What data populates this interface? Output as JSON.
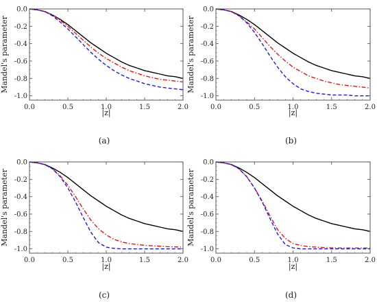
{
  "chart_data": [
    {
      "type": "line",
      "panel": "a",
      "caption": "(a)",
      "xlabel": "|z|",
      "ylabel": "Mandel's parameter",
      "xlim": [
        0,
        2
      ],
      "ylim": [
        -1.05,
        0
      ],
      "xticks": [
        "0.0",
        "0.5",
        "1.0",
        "1.5",
        "2.0"
      ],
      "yticks": [
        "0.0",
        "-0.2",
        "-0.4",
        "-0.6",
        "-0.8",
        "-1.0"
      ],
      "grid": false,
      "series": [
        {
          "color": "#000000",
          "style": "solid",
          "x": [
            0,
            0.1,
            0.2,
            0.3,
            0.4,
            0.5,
            0.6,
            0.7,
            0.8,
            0.9,
            1.0,
            1.1,
            1.2,
            1.3,
            1.4,
            1.5,
            1.6,
            1.7,
            1.8,
            1.9,
            2.0
          ],
          "y": [
            0,
            -0.01,
            -0.03,
            -0.07,
            -0.12,
            -0.18,
            -0.25,
            -0.32,
            -0.39,
            -0.45,
            -0.51,
            -0.56,
            -0.61,
            -0.65,
            -0.68,
            -0.71,
            -0.73,
            -0.75,
            -0.77,
            -0.78,
            -0.8
          ]
        },
        {
          "color": "#e8140f",
          "style": "dashdot",
          "x": [
            0,
            0.1,
            0.2,
            0.3,
            0.4,
            0.5,
            0.6,
            0.7,
            0.8,
            0.9,
            1.0,
            1.1,
            1.2,
            1.3,
            1.4,
            1.5,
            1.6,
            1.7,
            1.8,
            1.9,
            2.0
          ],
          "y": [
            0,
            -0.01,
            -0.03,
            -0.07,
            -0.13,
            -0.2,
            -0.28,
            -0.36,
            -0.44,
            -0.51,
            -0.57,
            -0.62,
            -0.67,
            -0.71,
            -0.74,
            -0.77,
            -0.79,
            -0.81,
            -0.82,
            -0.83,
            -0.84
          ]
        },
        {
          "color": "#1a1ae6",
          "style": "dashed",
          "x": [
            0,
            0.1,
            0.2,
            0.3,
            0.4,
            0.5,
            0.6,
            0.7,
            0.8,
            0.9,
            1.0,
            1.1,
            1.2,
            1.3,
            1.4,
            1.5,
            1.6,
            1.7,
            1.8,
            1.9,
            2.0
          ],
          "y": [
            0,
            -0.01,
            -0.03,
            -0.08,
            -0.15,
            -0.23,
            -0.32,
            -0.41,
            -0.5,
            -0.58,
            -0.65,
            -0.71,
            -0.76,
            -0.8,
            -0.83,
            -0.86,
            -0.88,
            -0.9,
            -0.91,
            -0.92,
            -0.93
          ]
        }
      ]
    },
    {
      "type": "line",
      "panel": "b",
      "caption": "(b)",
      "xlabel": "|z|",
      "ylabel": "Mandel's parameter",
      "xlim": [
        0,
        2
      ],
      "ylim": [
        -1.05,
        0
      ],
      "xticks": [
        "0.0",
        "0.5",
        "1.0",
        "1.5",
        "2.0"
      ],
      "yticks": [
        "0.0",
        "-0.2",
        "-0.4",
        "-0.6",
        "-0.8",
        "-1.0"
      ],
      "grid": false,
      "series": [
        {
          "color": "#000000",
          "style": "solid",
          "x": [
            0,
            0.1,
            0.2,
            0.3,
            0.4,
            0.5,
            0.6,
            0.7,
            0.8,
            0.9,
            1.0,
            1.1,
            1.2,
            1.3,
            1.4,
            1.5,
            1.6,
            1.7,
            1.8,
            1.9,
            2.0
          ],
          "y": [
            0,
            -0.01,
            -0.03,
            -0.07,
            -0.12,
            -0.18,
            -0.25,
            -0.32,
            -0.39,
            -0.45,
            -0.51,
            -0.56,
            -0.61,
            -0.65,
            -0.68,
            -0.71,
            -0.73,
            -0.75,
            -0.77,
            -0.78,
            -0.8
          ]
        },
        {
          "color": "#e8140f",
          "style": "dashdot",
          "x": [
            0,
            0.1,
            0.2,
            0.3,
            0.4,
            0.5,
            0.6,
            0.7,
            0.8,
            0.9,
            1.0,
            1.1,
            1.2,
            1.3,
            1.4,
            1.5,
            1.6,
            1.7,
            1.8,
            1.9,
            2.0
          ],
          "y": [
            0,
            -0.01,
            -0.03,
            -0.08,
            -0.15,
            -0.23,
            -0.33,
            -0.43,
            -0.52,
            -0.6,
            -0.67,
            -0.72,
            -0.77,
            -0.8,
            -0.83,
            -0.85,
            -0.87,
            -0.88,
            -0.89,
            -0.9,
            -0.91
          ]
        },
        {
          "color": "#1a1ae6",
          "style": "dashed",
          "x": [
            0,
            0.1,
            0.2,
            0.3,
            0.4,
            0.5,
            0.6,
            0.7,
            0.8,
            0.9,
            1.0,
            1.1,
            1.2,
            1.3,
            1.4,
            1.5,
            1.6,
            1.7,
            1.8,
            1.9,
            2.0
          ],
          "y": [
            0,
            -0.01,
            -0.03,
            -0.08,
            -0.16,
            -0.27,
            -0.4,
            -0.54,
            -0.67,
            -0.78,
            -0.86,
            -0.92,
            -0.95,
            -0.97,
            -0.98,
            -0.99,
            -0.99,
            -0.99,
            -1.0,
            -1.0,
            -1.0
          ]
        }
      ]
    },
    {
      "type": "line",
      "panel": "c",
      "caption": "(c)",
      "xlabel": "|z|",
      "ylabel": "Mandel's parameter",
      "xlim": [
        0,
        2
      ],
      "ylim": [
        -1.05,
        0
      ],
      "xticks": [
        "0.0",
        "0.5",
        "1.0",
        "1.5",
        "2.0"
      ],
      "yticks": [
        "0.0",
        "-0.2",
        "-0.4",
        "-0.6",
        "-0.8",
        "-1.0"
      ],
      "grid": false,
      "series": [
        {
          "color": "#000000",
          "style": "solid",
          "x": [
            0,
            0.1,
            0.2,
            0.3,
            0.4,
            0.5,
            0.6,
            0.7,
            0.8,
            0.9,
            1.0,
            1.1,
            1.2,
            1.3,
            1.4,
            1.5,
            1.6,
            1.7,
            1.8,
            1.9,
            2.0
          ],
          "y": [
            0,
            -0.01,
            -0.03,
            -0.07,
            -0.12,
            -0.18,
            -0.25,
            -0.32,
            -0.39,
            -0.45,
            -0.51,
            -0.56,
            -0.61,
            -0.65,
            -0.68,
            -0.71,
            -0.73,
            -0.75,
            -0.77,
            -0.78,
            -0.8
          ]
        },
        {
          "color": "#e8140f",
          "style": "dashdot",
          "x": [
            0,
            0.1,
            0.2,
            0.3,
            0.4,
            0.5,
            0.6,
            0.7,
            0.8,
            0.9,
            1.0,
            1.1,
            1.2,
            1.3,
            1.4,
            1.5,
            1.6,
            1.7,
            1.8,
            1.9,
            2.0
          ],
          "y": [
            0,
            -0.01,
            -0.03,
            -0.08,
            -0.16,
            -0.27,
            -0.4,
            -0.54,
            -0.67,
            -0.77,
            -0.84,
            -0.89,
            -0.92,
            -0.94,
            -0.95,
            -0.96,
            -0.965,
            -0.97,
            -0.975,
            -0.978,
            -0.98
          ]
        },
        {
          "color": "#1a1ae6",
          "style": "dashed",
          "x": [
            0,
            0.1,
            0.2,
            0.3,
            0.4,
            0.5,
            0.6,
            0.7,
            0.8,
            0.9,
            1.0,
            1.1,
            1.2,
            1.3,
            1.4,
            1.5,
            1.6,
            1.7,
            1.8,
            1.9,
            2.0
          ],
          "y": [
            0,
            -0.01,
            -0.03,
            -0.08,
            -0.17,
            -0.3,
            -0.46,
            -0.64,
            -0.81,
            -0.93,
            -0.98,
            -0.995,
            -1.0,
            -1.0,
            -1.0,
            -1.0,
            -1.0,
            -1.0,
            -1.0,
            -1.0,
            -1.0
          ]
        }
      ]
    },
    {
      "type": "line",
      "panel": "d",
      "caption": "(d)",
      "xlabel": "|z|",
      "ylabel": "Mandel's parameter",
      "xlim": [
        0,
        2
      ],
      "ylim": [
        -1.05,
        0
      ],
      "xticks": [
        "0.0",
        "0.5",
        "1.0",
        "1.5",
        "2.0"
      ],
      "yticks": [
        "0.0",
        "-0.2",
        "-0.4",
        "-0.6",
        "-0.8",
        "-1.0"
      ],
      "grid": false,
      "series": [
        {
          "color": "#000000",
          "style": "solid",
          "x": [
            0,
            0.1,
            0.2,
            0.3,
            0.4,
            0.5,
            0.6,
            0.7,
            0.8,
            0.9,
            1.0,
            1.1,
            1.2,
            1.3,
            1.4,
            1.5,
            1.6,
            1.7,
            1.8,
            1.9,
            2.0
          ],
          "y": [
            0,
            -0.01,
            -0.03,
            -0.07,
            -0.12,
            -0.18,
            -0.25,
            -0.32,
            -0.39,
            -0.45,
            -0.51,
            -0.56,
            -0.61,
            -0.65,
            -0.68,
            -0.71,
            -0.73,
            -0.75,
            -0.77,
            -0.78,
            -0.8
          ]
        },
        {
          "color": "#e8140f",
          "style": "dashdot",
          "x": [
            0,
            0.1,
            0.2,
            0.3,
            0.4,
            0.5,
            0.6,
            0.7,
            0.8,
            0.9,
            1.0,
            1.1,
            1.2,
            1.3,
            1.4,
            1.5,
            1.6,
            1.7,
            1.8,
            1.9,
            2.0
          ],
          "y": [
            0,
            -0.01,
            -0.03,
            -0.08,
            -0.17,
            -0.3,
            -0.45,
            -0.62,
            -0.78,
            -0.88,
            -0.94,
            -0.96,
            -0.975,
            -0.98,
            -0.985,
            -0.988,
            -0.99,
            -0.99,
            -0.99,
            -0.99,
            -0.99
          ]
        },
        {
          "color": "#1a1ae6",
          "style": "dashed",
          "x": [
            0,
            0.1,
            0.2,
            0.3,
            0.4,
            0.5,
            0.6,
            0.7,
            0.8,
            0.9,
            1.0,
            1.1,
            1.2,
            1.3,
            1.4,
            1.5,
            1.6,
            1.7,
            1.8,
            1.9,
            2.0
          ],
          "y": [
            0,
            -0.01,
            -0.03,
            -0.08,
            -0.17,
            -0.3,
            -0.46,
            -0.65,
            -0.83,
            -0.95,
            -0.99,
            -1.0,
            -1.0,
            -1.0,
            -1.0,
            -1.0,
            -1.0,
            -1.0,
            -1.0,
            -1.0,
            -1.0
          ]
        }
      ]
    }
  ]
}
